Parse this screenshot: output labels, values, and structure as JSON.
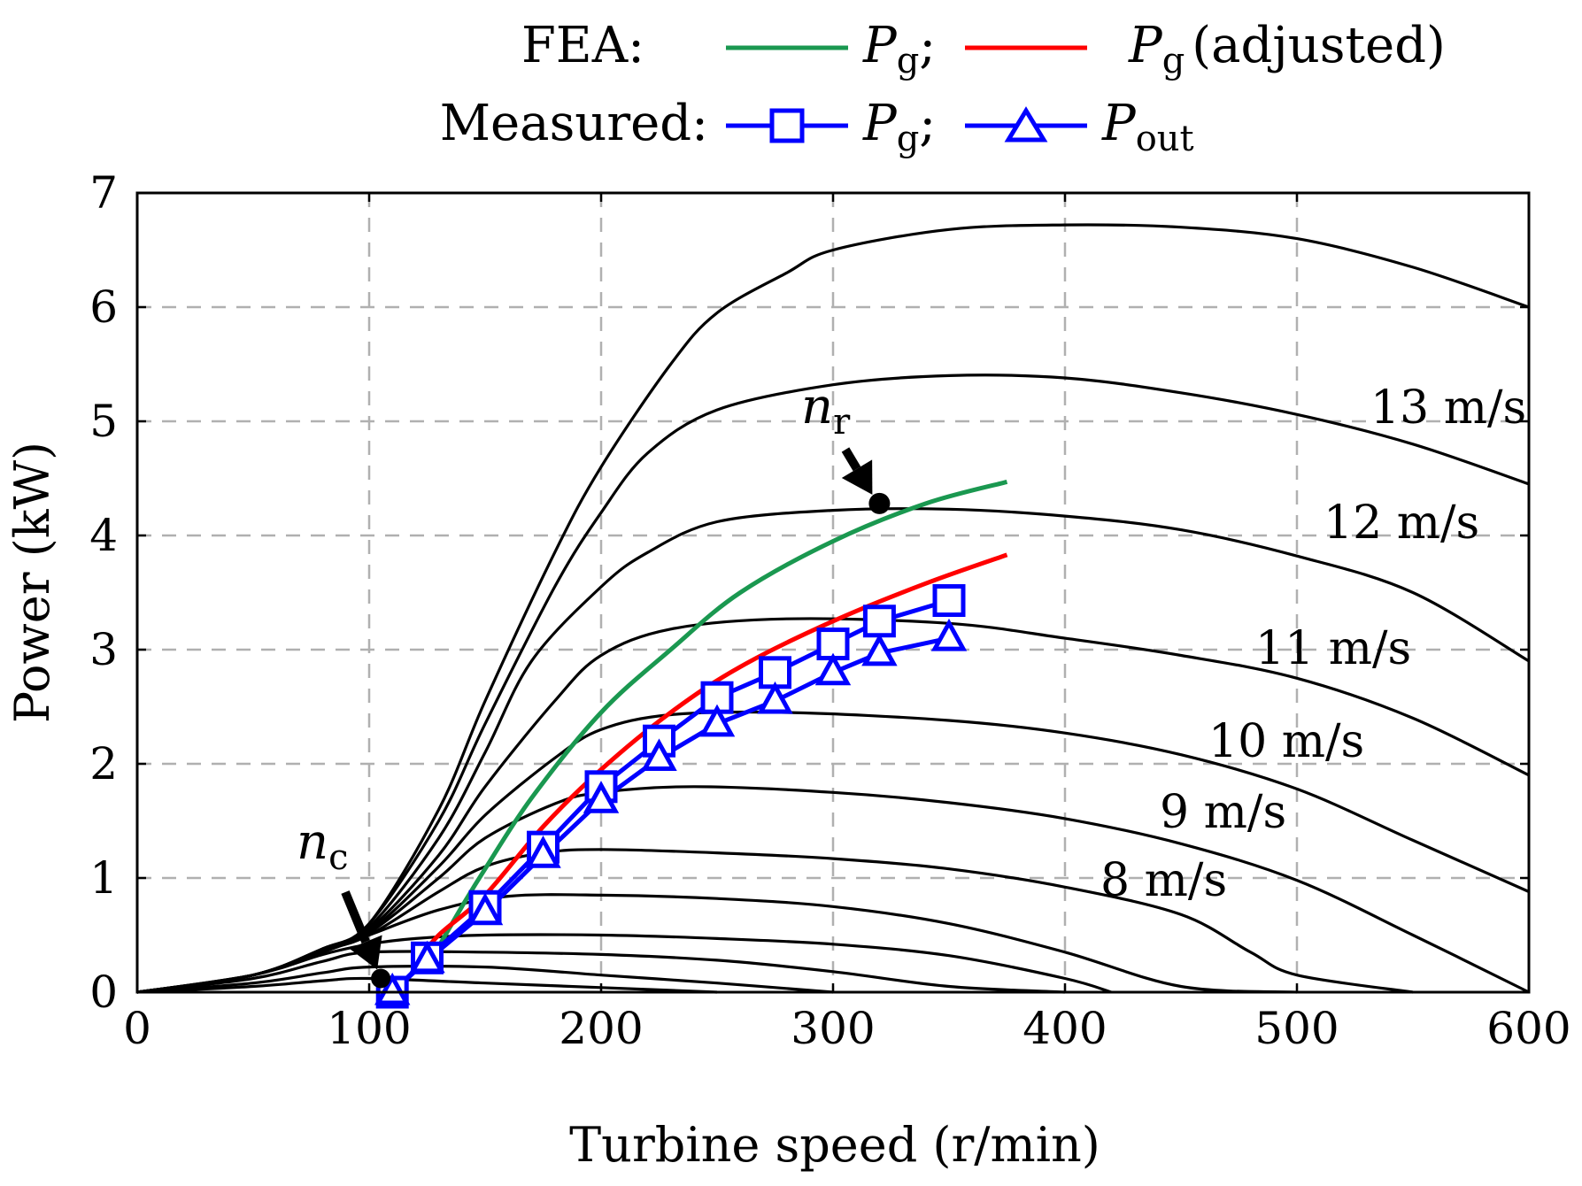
{
  "chart_data": {
    "type": "line",
    "xlabel": "Turbine speed (r/min)",
    "ylabel": "Power (kW)",
    "xlim": [
      0,
      600
    ],
    "ylim": [
      0,
      7
    ],
    "xticks": [
      0,
      100,
      200,
      300,
      400,
      500,
      600
    ],
    "yticks": [
      0,
      1,
      2,
      3,
      4,
      5,
      6,
      7
    ],
    "grid": true,
    "legend_placement": "top",
    "legend": {
      "fea_label": "FEA:",
      "measured_label": "Measured:",
      "pg_symbol": "P",
      "pg_subscript": "g",
      "sep": ";",
      "adjusted_text": "(adjusted)",
      "pout_symbol": "P",
      "pout_subscript": "out"
    },
    "annotations": {
      "nc_symbol": "n",
      "nc_subscript": "c",
      "nr_symbol": "n",
      "nr_subscript": "r"
    },
    "colors": {
      "turbine": "#000000",
      "fea_pg": "#1a9850",
      "fea_adjusted": "#ff0000",
      "measured": "#0000ff"
    },
    "turbine_curves": [
      {
        "label": "",
        "points": [
          [
            0,
            0
          ],
          [
            50,
            0.05
          ],
          [
            80,
            0.1
          ],
          [
            100,
            0.12
          ],
          [
            150,
            0.08
          ],
          [
            200,
            0.04
          ],
          [
            250,
            0
          ]
        ]
      },
      {
        "label": "",
        "points": [
          [
            0,
            0
          ],
          [
            50,
            0.08
          ],
          [
            80,
            0.17
          ],
          [
            100,
            0.22
          ],
          [
            150,
            0.22
          ],
          [
            200,
            0.15
          ],
          [
            250,
            0.08
          ],
          [
            300,
            0
          ]
        ]
      },
      {
        "label": "",
        "points": [
          [
            0,
            0
          ],
          [
            50,
            0.12
          ],
          [
            80,
            0.27
          ],
          [
            100,
            0.35
          ],
          [
            150,
            0.35
          ],
          [
            200,
            0.33
          ],
          [
            250,
            0.28
          ],
          [
            300,
            0.18
          ],
          [
            350,
            0.05
          ],
          [
            400,
            0
          ]
        ]
      },
      {
        "label": "",
        "points": [
          [
            0,
            0
          ],
          [
            50,
            0.15
          ],
          [
            80,
            0.33
          ],
          [
            100,
            0.42
          ],
          [
            120,
            0.47
          ],
          [
            150,
            0.5
          ],
          [
            200,
            0.5
          ],
          [
            250,
            0.47
          ],
          [
            300,
            0.42
          ],
          [
            350,
            0.32
          ],
          [
            400,
            0.12
          ],
          [
            420,
            0
          ]
        ]
      },
      {
        "label": "",
        "points": [
          [
            0,
            0
          ],
          [
            50,
            0.15
          ],
          [
            80,
            0.35
          ],
          [
            100,
            0.5
          ],
          [
            130,
            0.72
          ],
          [
            160,
            0.84
          ],
          [
            200,
            0.85
          ],
          [
            250,
            0.82
          ],
          [
            300,
            0.75
          ],
          [
            350,
            0.6
          ],
          [
            400,
            0.35
          ],
          [
            450,
            0.05
          ],
          [
            500,
            0
          ]
        ]
      },
      {
        "label": "8 m/s",
        "points": [
          [
            0,
            0
          ],
          [
            50,
            0.15
          ],
          [
            80,
            0.36
          ],
          [
            100,
            0.5
          ],
          [
            130,
            0.88
          ],
          [
            150,
            1.1
          ],
          [
            175,
            1.22
          ],
          [
            200,
            1.25
          ],
          [
            250,
            1.22
          ],
          [
            300,
            1.17
          ],
          [
            350,
            1.08
          ],
          [
            400,
            0.92
          ],
          [
            450,
            0.68
          ],
          [
            480,
            0.35
          ],
          [
            500,
            0.15
          ],
          [
            550,
            0
          ]
        ]
      },
      {
        "label": "9 m/s",
        "points": [
          [
            0,
            0
          ],
          [
            50,
            0.15
          ],
          [
            80,
            0.37
          ],
          [
            100,
            0.52
          ],
          [
            130,
            1.0
          ],
          [
            150,
            1.35
          ],
          [
            180,
            1.65
          ],
          [
            200,
            1.75
          ],
          [
            240,
            1.8
          ],
          [
            300,
            1.75
          ],
          [
            350,
            1.66
          ],
          [
            400,
            1.52
          ],
          [
            450,
            1.3
          ],
          [
            500,
            0.98
          ],
          [
            550,
            0.5
          ],
          [
            600,
            0
          ]
        ]
      },
      {
        "label": "10 m/s",
        "points": [
          [
            0,
            0
          ],
          [
            50,
            0.15
          ],
          [
            80,
            0.37
          ],
          [
            100,
            0.53
          ],
          [
            130,
            1.1
          ],
          [
            150,
            1.55
          ],
          [
            180,
            2.05
          ],
          [
            200,
            2.3
          ],
          [
            230,
            2.43
          ],
          [
            280,
            2.45
          ],
          [
            350,
            2.38
          ],
          [
            400,
            2.27
          ],
          [
            450,
            2.08
          ],
          [
            500,
            1.78
          ],
          [
            550,
            1.33
          ],
          [
            600,
            0.88
          ]
        ]
      },
      {
        "label": "11 m/s",
        "points": [
          [
            0,
            0
          ],
          [
            50,
            0.15
          ],
          [
            80,
            0.38
          ],
          [
            100,
            0.55
          ],
          [
            130,
            1.2
          ],
          [
            150,
            1.8
          ],
          [
            180,
            2.55
          ],
          [
            200,
            2.95
          ],
          [
            230,
            3.18
          ],
          [
            280,
            3.27
          ],
          [
            350,
            3.23
          ],
          [
            400,
            3.1
          ],
          [
            450,
            2.95
          ],
          [
            500,
            2.75
          ],
          [
            550,
            2.4
          ],
          [
            600,
            1.9
          ]
        ]
      },
      {
        "label": "12 m/s",
        "points": [
          [
            0,
            0
          ],
          [
            50,
            0.15
          ],
          [
            80,
            0.38
          ],
          [
            100,
            0.57
          ],
          [
            130,
            1.35
          ],
          [
            150,
            2.1
          ],
          [
            170,
            2.9
          ],
          [
            200,
            3.55
          ],
          [
            220,
            3.85
          ],
          [
            250,
            4.12
          ],
          [
            300,
            4.22
          ],
          [
            350,
            4.23
          ],
          [
            400,
            4.17
          ],
          [
            450,
            4.05
          ],
          [
            500,
            3.82
          ],
          [
            550,
            3.5
          ],
          [
            600,
            2.9
          ]
        ]
      },
      {
        "label": "13 m/s",
        "points": [
          [
            0,
            0
          ],
          [
            50,
            0.15
          ],
          [
            80,
            0.38
          ],
          [
            100,
            0.6
          ],
          [
            130,
            1.5
          ],
          [
            150,
            2.35
          ],
          [
            180,
            3.55
          ],
          [
            200,
            4.2
          ],
          [
            220,
            4.72
          ],
          [
            250,
            5.1
          ],
          [
            300,
            5.32
          ],
          [
            350,
            5.4
          ],
          [
            400,
            5.38
          ],
          [
            450,
            5.25
          ],
          [
            500,
            5.06
          ],
          [
            550,
            4.8
          ],
          [
            600,
            4.45
          ]
        ]
      },
      {
        "label": "",
        "points": [
          [
            0,
            0
          ],
          [
            50,
            0.15
          ],
          [
            80,
            0.38
          ],
          [
            100,
            0.6
          ],
          [
            130,
            1.6
          ],
          [
            150,
            2.55
          ],
          [
            180,
            3.85
          ],
          [
            200,
            4.6
          ],
          [
            230,
            5.5
          ],
          [
            250,
            5.95
          ],
          [
            280,
            6.3
          ],
          [
            300,
            6.5
          ],
          [
            350,
            6.68
          ],
          [
            400,
            6.72
          ],
          [
            450,
            6.7
          ],
          [
            500,
            6.6
          ],
          [
            550,
            6.35
          ],
          [
            600,
            6.0
          ]
        ]
      }
    ],
    "series": [
      {
        "name": "FEA Pg",
        "x": [
          130,
          140,
          150,
          170,
          200,
          230,
          260,
          300,
          340,
          375
        ],
        "y": [
          0.4,
          0.75,
          1.08,
          1.7,
          2.45,
          3.0,
          3.5,
          3.95,
          4.28,
          4.47
        ]
      },
      {
        "name": "FEA Pg (adjusted)",
        "x": [
          120,
          130,
          150,
          175,
          200,
          230,
          260,
          300,
          340,
          375
        ],
        "y": [
          0.25,
          0.5,
          0.85,
          1.45,
          1.95,
          2.45,
          2.85,
          3.25,
          3.58,
          3.83
        ]
      },
      {
        "name": "Measured Pg",
        "x": [
          110,
          125,
          150,
          175,
          200,
          225,
          250,
          275,
          300,
          320,
          350
        ],
        "y": [
          0.0,
          0.3,
          0.75,
          1.27,
          1.8,
          2.2,
          2.58,
          2.8,
          3.05,
          3.25,
          3.43
        ]
      },
      {
        "name": "Measured Pout",
        "x": [
          110,
          125,
          150,
          175,
          200,
          225,
          250,
          275,
          300,
          320,
          350
        ],
        "y": [
          0.0,
          0.28,
          0.7,
          1.2,
          1.68,
          2.05,
          2.35,
          2.55,
          2.8,
          2.97,
          3.1
        ]
      }
    ]
  }
}
